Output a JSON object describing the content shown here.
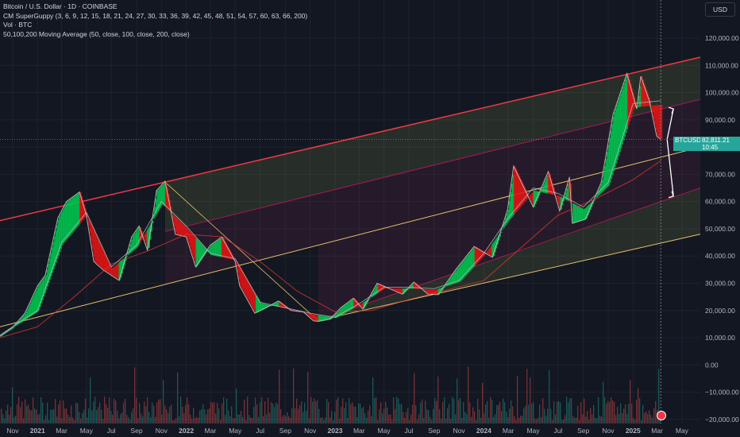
{
  "header": {
    "title": "Bitcoin / U.S. Dollar · 1D · COINBASE",
    "indicator1": "CM SuperGuppy (3, 6, 9, 12, 15, 18, 21, 24, 27, 30, 33, 36, 39, 42, 45, 48, 51, 54, 57, 60, 63, 66, 200)",
    "indicator2": "Vol · BTC",
    "indicator3": "50,100,200 Moving Average (50, close, 100, close, 200, close)"
  },
  "currency_button": "USD",
  "price_tag": {
    "symbol": "BTCUSD",
    "price": "82,811.21",
    "countdown": "10:45"
  },
  "colors": {
    "background": "#131722",
    "up": "#26a69a",
    "down": "#ef5350",
    "channel_top": "#f23645",
    "channel_mid": "#e8c06a"
  },
  "chart_data": {
    "type": "line",
    "title": "Bitcoin / U.S. Dollar · 1D · COINBASE",
    "x_tick_labels": [
      "Nov",
      "2021",
      "Mar",
      "May",
      "Jul",
      "Sep",
      "Nov",
      "2022",
      "Mar",
      "May",
      "Jul",
      "Sep",
      "Nov",
      "2023",
      "Mar",
      "May",
      "Jul",
      "Sep",
      "Nov",
      "2024",
      "Mar",
      "May",
      "Jul",
      "Sep",
      "Nov",
      "2025",
      "Mar",
      "May"
    ],
    "x_tick_dates": [
      "2020-11-01",
      "2021-01-01",
      "2021-03-01",
      "2021-05-01",
      "2021-07-01",
      "2021-09-01",
      "2021-11-01",
      "2022-01-01",
      "2022-03-01",
      "2022-05-01",
      "2022-07-01",
      "2022-09-01",
      "2022-11-01",
      "2023-01-01",
      "2023-03-01",
      "2023-05-01",
      "2023-07-01",
      "2023-09-01",
      "2023-11-01",
      "2024-01-01",
      "2024-03-01",
      "2024-05-01",
      "2024-07-01",
      "2024-09-01",
      "2024-11-01",
      "2025-01-01",
      "2025-03-01",
      "2025-05-01"
    ],
    "xlim": [
      "2020-10-01",
      "2025-06-15"
    ],
    "y_tick_labels": [
      "120,000.00",
      "110,000.00",
      "100,000.00",
      "90,000.00",
      "80,000.00",
      "70,000.00",
      "60,000.00",
      "50,000.00",
      "40,000.00",
      "30,000.00",
      "20,000.00",
      "10,000.00",
      "0.00",
      "−10,000.00",
      "−20,000.00"
    ],
    "y_ticks": [
      120000,
      110000,
      100000,
      90000,
      80000,
      70000,
      60000,
      50000,
      40000,
      30000,
      20000,
      10000,
      0,
      -10000,
      -20000
    ],
    "ylim": [
      -21500,
      134000
    ],
    "series": [
      {
        "type": "price",
        "x": [
          "2020-10-01",
          "2020-11-01",
          "2020-12-01",
          "2021-01-01",
          "2021-01-20",
          "2021-02-20",
          "2021-03-13",
          "2021-04-14",
          "2021-05-01",
          "2021-05-19",
          "2021-06-10",
          "2021-07-20",
          "2021-08-20",
          "2021-09-07",
          "2021-09-28",
          "2021-10-20",
          "2021-11-10",
          "2021-12-05",
          "2022-01-01",
          "2022-01-24",
          "2022-03-01",
          "2022-03-29",
          "2022-05-01",
          "2022-05-12",
          "2022-06-18",
          "2022-07-15",
          "2022-08-15",
          "2022-09-15",
          "2022-10-15",
          "2022-11-09",
          "2022-11-21",
          "2022-12-20",
          "2023-01-15",
          "2023-02-15",
          "2023-03-10",
          "2023-04-14",
          "2023-06-15",
          "2023-07-13",
          "2023-08-17",
          "2023-09-11",
          "2023-10-24",
          "2023-12-08",
          "2024-01-22",
          "2024-02-28",
          "2024-03-14",
          "2024-05-01",
          "2024-06-07",
          "2024-07-05",
          "2024-07-29",
          "2024-08-05",
          "2024-09-06",
          "2024-10-15",
          "2024-11-13",
          "2024-12-17",
          "2025-01-10",
          "2025-01-20",
          "2025-02-10",
          "2025-02-28",
          "2025-03-10"
        ],
        "values": [
          10500,
          13800,
          19000,
          29000,
          33000,
          54000,
          60000,
          63500,
          55000,
          38000,
          35000,
          31000,
          47000,
          51000,
          42000,
          64000,
          67500,
          48000,
          47000,
          36000,
          44000,
          47000,
          38000,
          29000,
          19000,
          21000,
          23500,
          20000,
          19500,
          16200,
          16000,
          16800,
          21000,
          24500,
          20500,
          30000,
          26000,
          30400,
          26000,
          25800,
          35000,
          43500,
          39500,
          57000,
          73000,
          58000,
          71000,
          56500,
          69000,
          52000,
          53500,
          67000,
          92000,
          107000,
          94000,
          106000,
          97000,
          84000,
          82800
        ]
      },
      {
        "type": "ma",
        "name": "200",
        "x": [
          "2020-10-01",
          "2021-01-01",
          "2021-04-01",
          "2021-07-01",
          "2021-10-01",
          "2022-01-01",
          "2022-04-01",
          "2022-07-01",
          "2022-10-01",
          "2023-01-01",
          "2023-04-01",
          "2023-07-01",
          "2023-10-01",
          "2024-01-01",
          "2024-04-01",
          "2024-07-01",
          "2024-10-01",
          "2025-01-01",
          "2025-03-10"
        ],
        "values": [
          10000,
          14000,
          25000,
          37000,
          42000,
          48000,
          47000,
          38000,
          27000,
          19500,
          20000,
          24000,
          27500,
          31000,
          43000,
          55000,
          61000,
          68000,
          75000
        ]
      },
      {
        "type": "ma",
        "name": "50",
        "x": [
          "2020-10-01",
          "2021-01-01",
          "2021-03-01",
          "2021-05-01",
          "2021-07-01",
          "2021-09-01",
          "2021-11-01",
          "2022-01-01",
          "2022-03-01",
          "2022-05-01",
          "2022-07-01",
          "2022-09-01",
          "2022-11-01",
          "2023-01-01",
          "2023-03-01",
          "2023-05-01",
          "2023-07-01",
          "2023-09-01",
          "2023-11-01",
          "2024-01-01",
          "2024-03-01",
          "2024-05-01",
          "2024-07-01",
          "2024-09-01",
          "2024-11-01",
          "2025-01-01",
          "2025-03-10"
        ],
        "values": [
          11000,
          20000,
          45000,
          56000,
          36000,
          44000,
          60000,
          51000,
          41000,
          39000,
          23000,
          21000,
          19000,
          17500,
          22500,
          28500,
          28500,
          28000,
          31000,
          41000,
          54000,
          65000,
          63000,
          58000,
          67000,
          96000,
          97000
        ]
      }
    ],
    "channel_lines": [
      {
        "role": "top",
        "x": [
          "2020-10-01",
          "2025-06-15"
        ],
        "values": [
          53000,
          113000
        ]
      },
      {
        "role": "upper-inner",
        "x": [
          "2021-11-10",
          "2025-06-15"
        ],
        "values": [
          49000,
          97500
        ]
      },
      {
        "role": "midline",
        "x": [
          "2020-10-01",
          "2025-06-15"
        ],
        "values": [
          14000,
          80000
        ]
      },
      {
        "role": "lower-inner",
        "x": [
          "2022-11-20",
          "2025-06-15"
        ],
        "values": [
          16300,
          65000
        ]
      },
      {
        "role": "bottom",
        "x": [
          "2022-11-20",
          "2025-06-15"
        ],
        "values": [
          16300,
          48000
        ]
      }
    ],
    "volume_baseline": -20000,
    "grid": true,
    "legend": "top-left"
  }
}
